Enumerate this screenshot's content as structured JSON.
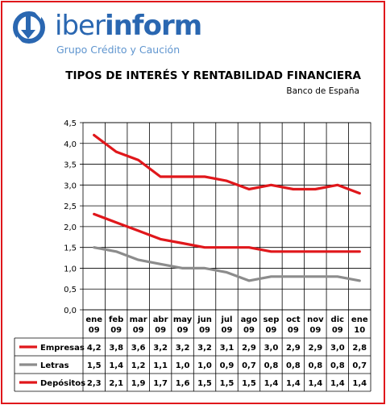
{
  "header": {
    "brand_prefix": "iber",
    "brand_suffix": "inform",
    "tagline": "Grupo Crédito y Caución",
    "title": "TIPOS DE INTERÉS Y RENTABILIDAD FINANCIERA",
    "source": "Banco de España"
  },
  "colors": {
    "frame": "#e0171b",
    "brand": "#2a67b1",
    "tagline": "#5f95cf",
    "empresas": "#e0171b",
    "letras": "#8c8c8c",
    "depositos": "#e0171b",
    "grid": "#000000"
  },
  "chart_data": {
    "type": "line",
    "title": "TIPOS DE INTERÉS Y RENTABILIDAD FINANCIERA",
    "subtitle": "Banco de España",
    "categories": [
      [
        "ene",
        "09"
      ],
      [
        "feb",
        "09"
      ],
      [
        "mar",
        "09"
      ],
      [
        "abr",
        "09"
      ],
      [
        "may",
        "09"
      ],
      [
        "jun",
        "09"
      ],
      [
        "jul",
        "09"
      ],
      [
        "ago",
        "09"
      ],
      [
        "sep",
        "09"
      ],
      [
        "oct",
        "09"
      ],
      [
        "nov",
        "09"
      ],
      [
        "dic",
        "09"
      ],
      [
        "ene",
        "10"
      ]
    ],
    "ylim": [
      0,
      4.5
    ],
    "ytick_step": 0.5,
    "ytick_labels": [
      "0,0",
      "0,5",
      "1,0",
      "1,5",
      "2,0",
      "2,5",
      "3,0",
      "3,5",
      "4,0",
      "4,5"
    ],
    "grid": true,
    "legend": "data-table",
    "series": [
      {
        "name": "Empresas",
        "color_key": "empresas",
        "values": [
          4.2,
          3.8,
          3.6,
          3.2,
          3.2,
          3.2,
          3.1,
          2.9,
          3.0,
          2.9,
          2.9,
          3.0,
          2.8
        ],
        "labels": [
          "4,2",
          "3,8",
          "3,6",
          "3,2",
          "3,2",
          "3,2",
          "3,1",
          "2,9",
          "3,0",
          "2,9",
          "2,9",
          "3,0",
          "2,8"
        ]
      },
      {
        "name": "Letras",
        "color_key": "letras",
        "values": [
          1.5,
          1.4,
          1.2,
          1.1,
          1.0,
          1.0,
          0.9,
          0.7,
          0.8,
          0.8,
          0.8,
          0.8,
          0.7
        ],
        "labels": [
          "1,5",
          "1,4",
          "1,2",
          "1,1",
          "1,0",
          "1,0",
          "0,9",
          "0,7",
          "0,8",
          "0,8",
          "0,8",
          "0,8",
          "0,7"
        ]
      },
      {
        "name": "Depósitos",
        "color_key": "depositos",
        "values": [
          2.3,
          2.1,
          1.9,
          1.7,
          1.6,
          1.5,
          1.5,
          1.5,
          1.4,
          1.4,
          1.4,
          1.4,
          1.4
        ],
        "labels": [
          "2,3",
          "2,1",
          "1,9",
          "1,7",
          "1,6",
          "1,5",
          "1,5",
          "1,5",
          "1,4",
          "1,4",
          "1,4",
          "1,4",
          "1,4"
        ]
      }
    ]
  }
}
